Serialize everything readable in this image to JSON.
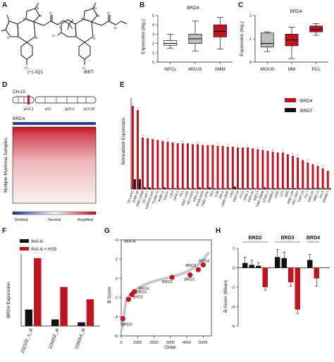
{
  "panel_letters": {
    "a": "A",
    "b": "B",
    "c": "C",
    "d": "D",
    "e": "E",
    "f": "F",
    "g": "G",
    "h": "H"
  },
  "colors": {
    "red": "#c0141f",
    "black": "#111111",
    "grey_box": "#bdbdbd",
    "gene_blue": "#2a3a9a"
  },
  "panel_a": {
    "compound1": "(+)-JQ1",
    "compound2": "iBET",
    "atom_labels": [
      "N",
      "N",
      "N",
      "N",
      "S",
      "O",
      "O",
      "Cl",
      "N",
      "N",
      "N",
      "N",
      "O",
      "N",
      "O",
      "Cl"
    ]
  },
  "chart_data": [
    {
      "panel": "B",
      "type": "boxplot",
      "title": "BRD4",
      "ylabel": "Expression (log₂)",
      "ylim": [
        0,
        5
      ],
      "yticks": [
        "0",
        "1",
        "2",
        "3",
        "4",
        "5"
      ],
      "categories": [
        "NPCs",
        "MGUS",
        "SMM"
      ],
      "boxes": [
        {
          "min": 1.5,
          "q1": 1.8,
          "median": 2.0,
          "q3": 2.3,
          "max": 3.0,
          "fill": "#ffffff"
        },
        {
          "min": 1.2,
          "q1": 2.0,
          "median": 2.5,
          "q3": 3.0,
          "max": 4.4,
          "fill": "#bdbdbd"
        },
        {
          "min": 1.4,
          "q1": 2.7,
          "median": 3.3,
          "q3": 4.0,
          "max": 4.8,
          "fill": "#c0141f"
        }
      ]
    },
    {
      "panel": "C",
      "type": "boxplot",
      "title": "BRD4",
      "ylabel": "Expression (log₂)",
      "ylim": [
        0,
        2
      ],
      "yticks": [
        "0",
        "1",
        "2"
      ],
      "categories": [
        "MGUS",
        "MM",
        "PCL"
      ],
      "boxes": [
        {
          "min": 0.45,
          "q1": 0.65,
          "median": 0.8,
          "q3": 1.25,
          "max": 1.3,
          "fill": "#bdbdbd"
        },
        {
          "min": 0.15,
          "q1": 0.7,
          "median": 0.95,
          "q3": 1.2,
          "max": 1.5,
          "fill": "#c0141f"
        },
        {
          "min": 1.15,
          "q1": 1.3,
          "median": 1.4,
          "q3": 1.55,
          "max": 1.65,
          "fill": "#c0141f"
        }
      ]
    },
    {
      "panel": "E",
      "type": "bar",
      "ylabel": "Normalized Expression",
      "legend": [
        "BRD4",
        "BRDT"
      ],
      "categories": [
        "OCI-MY5",
        "KHM-1B",
        "KMS-12BM",
        "OCI-MY7",
        "KARPAS-620",
        "FLAM-76",
        "ANBL-6",
        "SACHI",
        "L363",
        "OPM-2",
        "PE1",
        "KMS-11PE",
        "NCI-H929",
        "KMS-11",
        "RPMI-8226",
        "KMS-12PE",
        "PE2",
        "EJM",
        "INA-6",
        "KMS-28PE",
        "JJN3",
        "KMS-34",
        "H112",
        "OPM-1",
        "KMS-20",
        "AMO-1",
        "KMS-28BM",
        "UTMC-2",
        "SKMM-2",
        "U266",
        "LP1",
        "JIM3",
        "MM1-144",
        "DEL-TA47",
        "KMS-18",
        "XG-7",
        "KMS-26",
        "MM1-S",
        "XG-2",
        "SKMM-1"
      ],
      "series": [
        {
          "name": "BRD4",
          "values": [
            1.0,
            0.95,
            0.62,
            0.61,
            0.6,
            0.59,
            0.58,
            0.57,
            0.56,
            0.55,
            0.55,
            0.55,
            0.54,
            0.54,
            0.53,
            0.53,
            0.53,
            0.52,
            0.52,
            0.51,
            0.51,
            0.5,
            0.5,
            0.5,
            0.49,
            0.48,
            0.47,
            0.46,
            0.45,
            0.44,
            0.44,
            0.42,
            0.4,
            0.38,
            0.35,
            0.32,
            0.3,
            0.28,
            0.25,
            0.22
          ]
        },
        {
          "name": "BRDT",
          "values": [
            0.12,
            0.12,
            0.02,
            0.02,
            0.01,
            0.01,
            0.02,
            0.01,
            0.01,
            0.01,
            0.01,
            0.01,
            0.01,
            0.02,
            0.01,
            0.02,
            0.01,
            0.01,
            0.01,
            0.01,
            0.03,
            0.01,
            0.01,
            0.01,
            0.01,
            0.01,
            0.02,
            0.01,
            0.01,
            0.01,
            0.01,
            0.01,
            0.01,
            0.01,
            0.01,
            0.01,
            0.01,
            0.01,
            0.01,
            0.01
          ]
        }
      ],
      "star_marks": [
        "*",
        "*",
        "*",
        "*",
        "*",
        "*",
        "*",
        "*",
        "*",
        "*",
        "*",
        "*",
        "*",
        "*",
        "*",
        "*",
        "*",
        "*",
        "*",
        "*"
      ]
    },
    {
      "panel": "F",
      "type": "bar",
      "ylabel": "BRD4 Expression",
      "ylim": [
        0,
        350
      ],
      "legend": [
        "INA-6",
        "INA-6 + HS5"
      ],
      "categories": [
        "202102_s_at",
        "226052_at",
        "226054_at"
      ],
      "series": [
        {
          "name": "INA-6",
          "values": [
            80,
            32,
            18
          ]
        },
        {
          "name": "INA-6 + HS5",
          "values": [
            330,
            190,
            130
          ]
        }
      ]
    },
    {
      "panel": "G",
      "type": "scatter",
      "title": "INA-6",
      "xlabel": "Order",
      "ylabel": "B-Score",
      "xlim": [
        0,
        5500
      ],
      "ylim": [
        -6,
        4
      ],
      "xticks": [
        "0",
        "1000",
        "2000",
        "3000",
        "4000",
        "5000"
      ],
      "yticks": [
        "-6",
        "-4",
        "-2",
        "0",
        "2",
        "4"
      ],
      "highlighted": [
        {
          "x": 100,
          "y": -4.2,
          "label": "BRD3"
        },
        {
          "x": 450,
          "y": -2.2,
          "label": "BRD2"
        },
        {
          "x": 650,
          "y": -1.7,
          "label": "BRD3"
        },
        {
          "x": 800,
          "y": -1.4,
          "label": "BRD4"
        },
        {
          "x": 3100,
          "y": 0.1,
          "label": "BRD2"
        },
        {
          "x": 4200,
          "y": 0.35,
          "label": "BRD2"
        },
        {
          "x": 4700,
          "y": 0.9,
          "label": "BRD3"
        },
        {
          "x": 5000,
          "y": 1.4,
          "label": "BRD4"
        }
      ]
    },
    {
      "panel": "H",
      "type": "bar",
      "ylabel": "B-Score (Mean)",
      "ylim": [
        -6,
        2
      ],
      "yticks": [
        "-6",
        "-4",
        "-2",
        "0",
        "2"
      ],
      "groups": [
        "BRD2",
        "BRD3",
        "BRD4"
      ],
      "bars": [
        {
          "group": "BRD2",
          "values": [
            0.5,
            0.3,
            0.2,
            -2.0
          ],
          "colors": [
            "#111111",
            "#111111",
            "#111111",
            "#c0141f"
          ],
          "errors": [
            0.6,
            0.5,
            0.3,
            0.3
          ]
        },
        {
          "group": "BRD3",
          "values": [
            1.1,
            1.0,
            -1.5,
            -4.3
          ],
          "colors": [
            "#111111",
            "#111111",
            "#c0141f",
            "#c0141f"
          ],
          "errors": [
            0.8,
            0.6,
            0.4,
            0.4
          ]
        },
        {
          "group": "BRD4",
          "values": [
            0.8,
            -1.1
          ],
          "colors": [
            "#111111",
            "#c0141f"
          ],
          "errors": [
            0.6,
            0.8
          ]
        }
      ]
    }
  ],
  "panel_d": {
    "chromosome": "Chr19",
    "band_labels": [
      "p13.1",
      "p11",
      "q13.2",
      "q13.42"
    ],
    "gene": "BRD4",
    "ylabel": "Multiple Myeloma Samples",
    "legend": [
      "Deleted",
      "Neutral",
      "Amplified"
    ]
  }
}
